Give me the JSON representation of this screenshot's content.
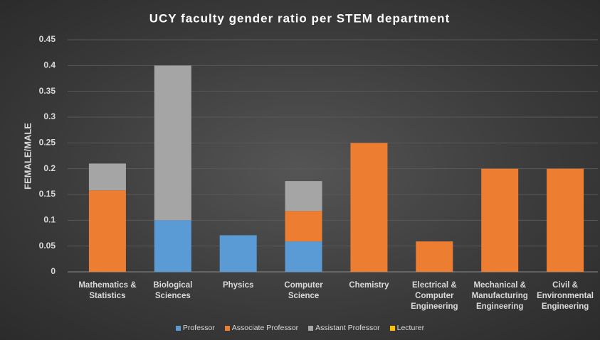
{
  "chart_data": {
    "type": "stacked_bar",
    "title": "UCY faculty gender ratio per STEM department",
    "y_label": "FEMALE/MALE",
    "categories": [
      "Mathematics & Statistics",
      "Biological Sciences",
      "Physics",
      "Computer Science",
      "Chemistry",
      "Electrical & Computer Engineering",
      "Mechanical & Manufacturing Engineering",
      "Civil & Environmental Engineering"
    ],
    "series": [
      {
        "name": "Professor",
        "color": "#5b9bd5",
        "values": [
          0,
          0.1,
          0.071,
          0.059,
          0,
          0,
          0,
          0
        ]
      },
      {
        "name": "Associate Professor",
        "color": "#ed7d31",
        "values": [
          0.158,
          0,
          0,
          0.059,
          0.25,
          0.059,
          0.2,
          0.2
        ]
      },
      {
        "name": "Assistant Professor",
        "color": "#a5a5a5",
        "values": [
          0.052,
          0.3,
          0,
          0.058,
          0,
          0,
          0,
          0
        ]
      },
      {
        "name": "Lecturer",
        "color": "#ffc000",
        "values": [
          0,
          0,
          0,
          0,
          0,
          0,
          0,
          0
        ]
      }
    ],
    "ylim": [
      0,
      0.45
    ],
    "yticks": [
      0,
      0.05,
      0.1,
      0.15,
      0.2,
      0.25,
      0.3,
      0.35,
      0.4,
      0.45
    ],
    "grid": true,
    "legend": "bottom"
  }
}
